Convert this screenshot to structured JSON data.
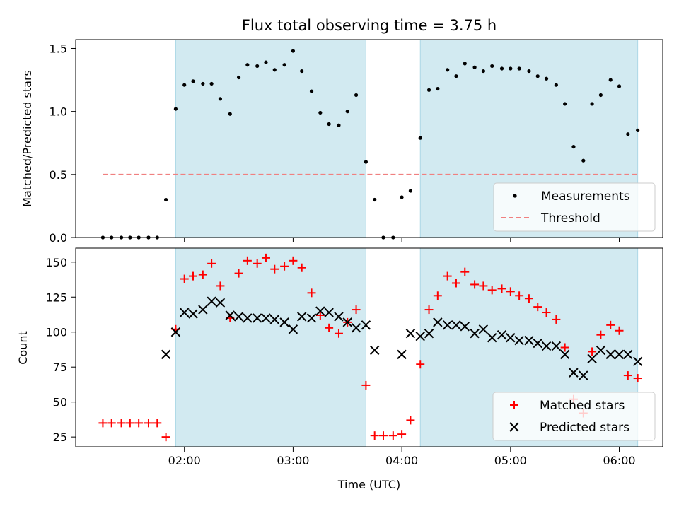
{
  "title": "Flux total observing time = 3.75 h",
  "colors": {
    "shade": "#add8e6",
    "measurement": "#000000",
    "threshold": "#f08080",
    "matched": "#ff0000",
    "predicted": "#000000"
  },
  "xaxis": {
    "label": "Time (UTC)",
    "ticks": [
      {
        "value": 2,
        "label": "02:00"
      },
      {
        "value": 3,
        "label": "03:00"
      },
      {
        "value": 4,
        "label": "04:00"
      },
      {
        "value": 5,
        "label": "05:00"
      },
      {
        "value": 6,
        "label": "06:00"
      }
    ],
    "xlim": [
      1.0,
      6.4
    ]
  },
  "chart_data": [
    {
      "type": "scatter",
      "panel": "top",
      "ylabel": "Matched/Predicted stars",
      "ylim": [
        0,
        1.57
      ],
      "yticks": [
        {
          "value": 0,
          "label": "0.0"
        },
        {
          "value": 0.5,
          "label": "0.5"
        },
        {
          "value": 1.0,
          "label": "1.0"
        },
        {
          "value": 1.5,
          "label": "1.5"
        }
      ],
      "shaded_intervals": [
        [
          1.92,
          3.67
        ],
        [
          4.17,
          6.17
        ]
      ],
      "threshold": {
        "name": "Threshold",
        "value": 0.5,
        "x": [
          1.25,
          6.17
        ],
        "style": "dashed"
      },
      "legend": {
        "placement": "lower right",
        "entries": [
          "Measurements",
          "Threshold"
        ]
      },
      "series": [
        {
          "name": "Measurements",
          "marker": "dot",
          "points": [
            [
              1.25,
              0.0
            ],
            [
              1.33,
              0.0
            ],
            [
              1.42,
              0.0
            ],
            [
              1.5,
              0.0
            ],
            [
              1.58,
              0.0
            ],
            [
              1.67,
              0.0
            ],
            [
              1.75,
              0.0
            ],
            [
              1.83,
              0.3
            ],
            [
              1.92,
              1.02
            ],
            [
              2.0,
              1.21
            ],
            [
              2.08,
              1.24
            ],
            [
              2.17,
              1.22
            ],
            [
              2.25,
              1.22
            ],
            [
              2.33,
              1.1
            ],
            [
              2.42,
              0.98
            ],
            [
              2.5,
              1.27
            ],
            [
              2.58,
              1.37
            ],
            [
              2.67,
              1.36
            ],
            [
              2.75,
              1.39
            ],
            [
              2.83,
              1.33
            ],
            [
              2.92,
              1.37
            ],
            [
              3.0,
              1.48
            ],
            [
              3.08,
              1.32
            ],
            [
              3.17,
              1.16
            ],
            [
              3.25,
              0.99
            ],
            [
              3.33,
              0.9
            ],
            [
              3.42,
              0.89
            ],
            [
              3.5,
              1.0
            ],
            [
              3.58,
              1.13
            ],
            [
              3.67,
              0.6
            ],
            [
              3.75,
              0.3
            ],
            [
              3.83,
              0.0
            ],
            [
              3.92,
              0.0
            ],
            [
              4.0,
              0.32
            ],
            [
              4.08,
              0.37
            ],
            [
              4.17,
              0.79
            ],
            [
              4.25,
              1.17
            ],
            [
              4.33,
              1.18
            ],
            [
              4.42,
              1.33
            ],
            [
              4.5,
              1.28
            ],
            [
              4.58,
              1.38
            ],
            [
              4.67,
              1.35
            ],
            [
              4.75,
              1.32
            ],
            [
              4.83,
              1.36
            ],
            [
              4.92,
              1.34
            ],
            [
              5.0,
              1.34
            ],
            [
              5.08,
              1.34
            ],
            [
              5.17,
              1.32
            ],
            [
              5.25,
              1.28
            ],
            [
              5.33,
              1.26
            ],
            [
              5.42,
              1.21
            ],
            [
              5.5,
              1.06
            ],
            [
              5.58,
              0.72
            ],
            [
              5.67,
              0.61
            ],
            [
              5.75,
              1.06
            ],
            [
              5.83,
              1.13
            ],
            [
              5.92,
              1.25
            ],
            [
              6.0,
              1.2
            ],
            [
              6.08,
              0.82
            ],
            [
              6.17,
              0.85
            ]
          ]
        }
      ]
    },
    {
      "type": "scatter",
      "panel": "bottom",
      "ylabel": "Count",
      "ylim": [
        18,
        160
      ],
      "yticks": [
        {
          "value": 25,
          "label": "25"
        },
        {
          "value": 50,
          "label": "50"
        },
        {
          "value": 75,
          "label": "75"
        },
        {
          "value": 100,
          "label": "100"
        },
        {
          "value": 125,
          "label": "125"
        },
        {
          "value": 150,
          "label": "150"
        }
      ],
      "shaded_intervals": [
        [
          1.92,
          3.67
        ],
        [
          4.17,
          6.17
        ]
      ],
      "legend": {
        "placement": "lower right",
        "entries": [
          "Matched stars",
          "Predicted stars"
        ]
      },
      "series": [
        {
          "name": "Matched stars",
          "marker": "plus",
          "points": [
            [
              1.25,
              35
            ],
            [
              1.33,
              35
            ],
            [
              1.42,
              35
            ],
            [
              1.5,
              35
            ],
            [
              1.58,
              35
            ],
            [
              1.67,
              35
            ],
            [
              1.75,
              35
            ],
            [
              1.83,
              25
            ],
            [
              1.92,
              102
            ],
            [
              2.0,
              138
            ],
            [
              2.08,
              140
            ],
            [
              2.17,
              141
            ],
            [
              2.25,
              149
            ],
            [
              2.33,
              133
            ],
            [
              2.42,
              110
            ],
            [
              2.5,
              142
            ],
            [
              2.58,
              151
            ],
            [
              2.67,
              149
            ],
            [
              2.75,
              153
            ],
            [
              2.83,
              145
            ],
            [
              2.92,
              147
            ],
            [
              3.0,
              151
            ],
            [
              3.08,
              146
            ],
            [
              3.17,
              128
            ],
            [
              3.25,
              112
            ],
            [
              3.33,
              103
            ],
            [
              3.42,
              99
            ],
            [
              3.5,
              107
            ],
            [
              3.58,
              116
            ],
            [
              3.67,
              62
            ],
            [
              3.75,
              26
            ],
            [
              3.83,
              26
            ],
            [
              3.92,
              26
            ],
            [
              4.0,
              27
            ],
            [
              4.08,
              37
            ],
            [
              4.17,
              77
            ],
            [
              4.25,
              116
            ],
            [
              4.33,
              126
            ],
            [
              4.42,
              140
            ],
            [
              4.5,
              135
            ],
            [
              4.58,
              143
            ],
            [
              4.67,
              134
            ],
            [
              4.75,
              133
            ],
            [
              4.83,
              130
            ],
            [
              4.92,
              131
            ],
            [
              5.0,
              129
            ],
            [
              5.08,
              126
            ],
            [
              5.17,
              124
            ],
            [
              5.25,
              118
            ],
            [
              5.33,
              114
            ],
            [
              5.42,
              109
            ],
            [
              5.5,
              89
            ],
            [
              5.58,
              52
            ],
            [
              5.67,
              42
            ],
            [
              5.75,
              86
            ],
            [
              5.83,
              98
            ],
            [
              5.92,
              105
            ],
            [
              6.0,
              101
            ],
            [
              6.08,
              69
            ],
            [
              6.17,
              67
            ]
          ]
        },
        {
          "name": "Predicted stars",
          "marker": "x",
          "points": [
            [
              1.83,
              84
            ],
            [
              1.92,
              100
            ],
            [
              2.0,
              114
            ],
            [
              2.08,
              113
            ],
            [
              2.17,
              116
            ],
            [
              2.25,
              122
            ],
            [
              2.33,
              121
            ],
            [
              2.42,
              112
            ],
            [
              2.5,
              111
            ],
            [
              2.58,
              110
            ],
            [
              2.67,
              110
            ],
            [
              2.75,
              110
            ],
            [
              2.83,
              109
            ],
            [
              2.92,
              107
            ],
            [
              3.0,
              102
            ],
            [
              3.08,
              111
            ],
            [
              3.17,
              110
            ],
            [
              3.25,
              115
            ],
            [
              3.33,
              114
            ],
            [
              3.42,
              111
            ],
            [
              3.5,
              107
            ],
            [
              3.58,
              103
            ],
            [
              3.67,
              105
            ],
            [
              3.75,
              87
            ],
            [
              4.0,
              84
            ],
            [
              4.08,
              99
            ],
            [
              4.17,
              97
            ],
            [
              4.25,
              99
            ],
            [
              4.33,
              107
            ],
            [
              4.42,
              105
            ],
            [
              4.5,
              105
            ],
            [
              4.58,
              104
            ],
            [
              4.67,
              99
            ],
            [
              4.75,
              102
            ],
            [
              4.83,
              96
            ],
            [
              4.92,
              98
            ],
            [
              5.0,
              96
            ],
            [
              5.08,
              94
            ],
            [
              5.17,
              94
            ],
            [
              5.25,
              92
            ],
            [
              5.33,
              90
            ],
            [
              5.42,
              90
            ],
            [
              5.5,
              84
            ],
            [
              5.58,
              71
            ],
            [
              5.67,
              69
            ],
            [
              5.75,
              81
            ],
            [
              5.83,
              87
            ],
            [
              5.92,
              84
            ],
            [
              6.0,
              84
            ],
            [
              6.08,
              84
            ],
            [
              6.17,
              79
            ]
          ]
        }
      ]
    }
  ]
}
